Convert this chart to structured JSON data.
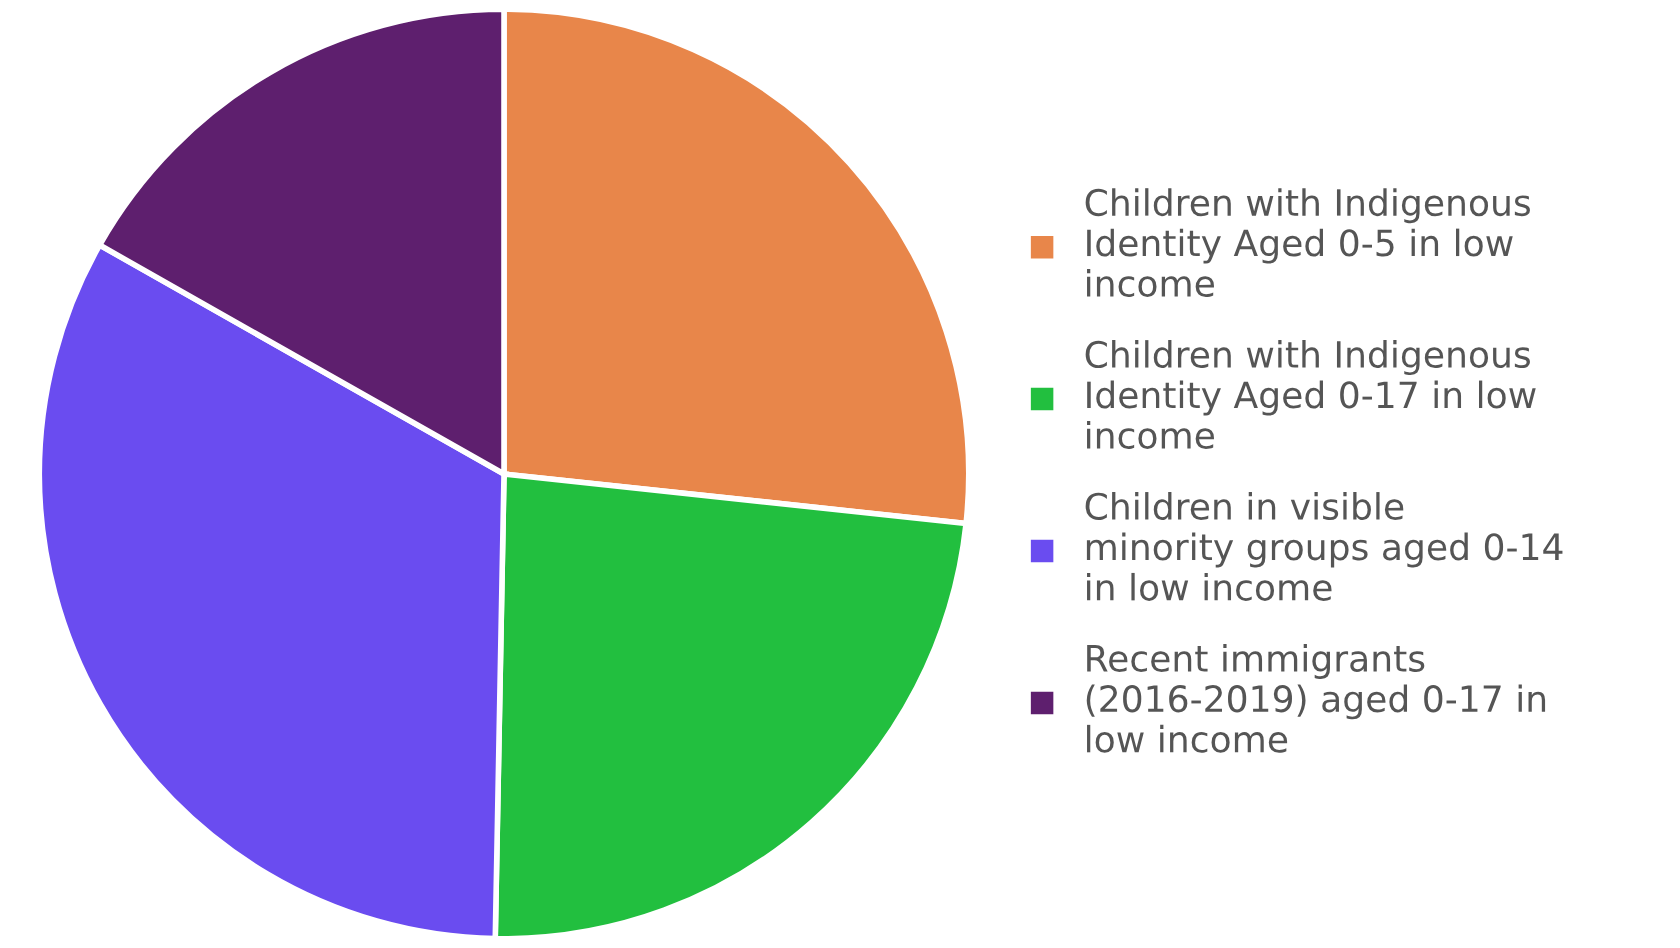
{
  "chart_data": {
    "type": "pie",
    "categories": [
      "Children with Indigenous Identity Aged 0-5 in low income",
      "Children with Indigenous Identity Aged 0-17 in low income",
      "Children in visible minority groups aged 0-14 in low income",
      "Recent immigrants (2016-2019) aged 0-17 in low income"
    ],
    "values": [
      26.7,
      23.6,
      32.9,
      16.8
    ],
    "colors": [
      "#e8864a",
      "#22bf3f",
      "#6a4cf0",
      "#5e1f6e"
    ],
    "legend": "right"
  }
}
